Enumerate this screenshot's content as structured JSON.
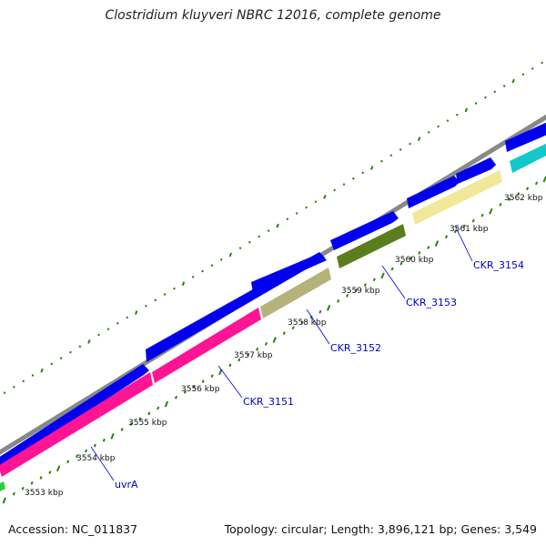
{
  "title": "Clostridium kluyveri NBRC 12016, complete genome",
  "footer": {
    "accession": "Accession: NC_011837",
    "stats": "Topology: circular; Length: 3,896,121 bp; Genes: 3,549"
  },
  "colors": {
    "backbone": "#888888",
    "forward_cds": "#0000ee",
    "tick": "#2e7d10",
    "uvrA": "#ff1493",
    "CKR_3152": "#b5b27a",
    "CKR_3153": "#5a7d1e",
    "CKR_3154": "#f2e899",
    "cyan_gene": "#12c8c8",
    "label": "#0000cc"
  },
  "ticks": [
    {
      "label": "3553 kbp"
    },
    {
      "label": "3554 kbp"
    },
    {
      "label": "3555 kbp"
    },
    {
      "label": "3556 kbp"
    },
    {
      "label": "3557 kbp"
    },
    {
      "label": "3558 kbp"
    },
    {
      "label": "3559 kbp"
    },
    {
      "label": "3560 kbp"
    },
    {
      "label": "3561 kbp"
    },
    {
      "label": "3562 kbp"
    }
  ],
  "genes": [
    {
      "name": "uvrA"
    },
    {
      "name": "CKR_3151"
    },
    {
      "name": "CKR_3152"
    },
    {
      "name": "CKR_3153"
    },
    {
      "name": "CKR_3154"
    }
  ]
}
